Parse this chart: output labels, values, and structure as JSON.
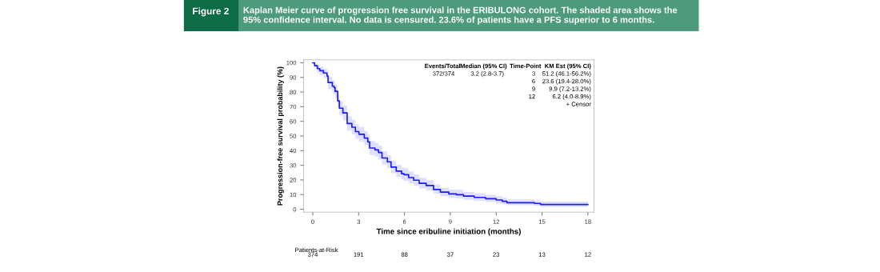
{
  "chart_data": {
    "type": "step",
    "title": "Figure 2",
    "subtitle": "Kaplan Meier curve of progression free survival in the ERIBULONG cohort. The shaded area shows the 95% confidence interval. No data is censured. 23.6% of patients have a PFS superior to 6 months.",
    "xlabel": "Time since eribuline initiation (months)",
    "ylabel": "Progression-free survival probability (%)",
    "x": [
      0,
      0.12,
      0.3,
      0.46,
      0.7,
      0.93,
      1.0,
      1.28,
      1.4,
      1.46,
      1.63,
      1.74,
      1.97,
      2.25,
      2.56,
      2.79,
      3.02,
      3.37,
      3.6,
      3.72,
      4.07,
      4.3,
      4.53,
      4.88,
      5.12,
      5.46,
      5.81,
      5.97,
      6.27,
      6.6,
      6.96,
      7.42,
      7.9,
      8.35,
      8.9,
      9.4,
      9.86,
      10.56,
      11.3,
      12.0,
      12.4,
      12.7,
      14.5,
      14.9,
      18
    ],
    "series": [
      {
        "color": "#1a1aff",
        "values": [
          100,
          98,
          96,
          94.6,
          93,
          91,
          86.5,
          84,
          83,
          80.5,
          74,
          69,
          65.8,
          58.5,
          56,
          53,
          51.2,
          48.6,
          46,
          41.8,
          40.5,
          38.7,
          35,
          32.4,
          28.8,
          26,
          24.3,
          23.6,
          21.6,
          19.8,
          17.7,
          16.2,
          13.5,
          11.7,
          10.5,
          9.9,
          9,
          8.1,
          7.2,
          6.3,
          5.4,
          4.5,
          4,
          3.2,
          3.2
        ],
        "lower": [
          100,
          96,
          93,
          91.5,
          89.5,
          87.5,
          82,
          79.5,
          78.5,
          76,
          69.5,
          64,
          60.8,
          53.5,
          51,
          48,
          46.1,
          43.6,
          41,
          37,
          35.8,
          34,
          30.5,
          28,
          24.6,
          22,
          20.2,
          19.4,
          17.6,
          16,
          14.2,
          12.8,
          10.5,
          8.9,
          7.8,
          7.2,
          6.5,
          5.7,
          5,
          4.0,
          3.4,
          2.7,
          2.3,
          1.6,
          1.6
        ],
        "upper": [
          100,
          99.5,
          98.3,
          97.2,
          96,
          94.5,
          90.5,
          88.3,
          87.4,
          85,
          78.5,
          73.8,
          70.8,
          63.5,
          61,
          58,
          56.2,
          53.6,
          51,
          46.6,
          45.2,
          43.4,
          39.6,
          37,
          33.2,
          30.2,
          28.6,
          28.0,
          25.8,
          23.8,
          21.5,
          19.8,
          16.8,
          14.8,
          13.4,
          13.2,
          11.8,
          10.8,
          9.8,
          8.9,
          7.8,
          6.7,
          6.0,
          5.2,
          5.2
        ]
      }
    ],
    "xlim": [
      -0.6,
      18.4
    ],
    "xticks": [
      0,
      3,
      6,
      9,
      12,
      15,
      18
    ],
    "ylim": [
      -2,
      102
    ],
    "yticks": [
      0,
      10,
      20,
      30,
      40,
      50,
      60,
      70,
      80,
      90,
      100
    ],
    "grid": false,
    "annotations": [
      "Events/Total",
      "Median (95% CI)",
      "Time-Point",
      "KM Est (95% CI)",
      "372/374",
      "3.2 (2.8-3.7)",
      "3",
      "51.2 (46.1-56.2%)",
      "6",
      "23.6 (19.4-28.0%)",
      "9",
      "9.9 (7.2-13.2%)",
      "12",
      "6.2 (4.0-8.9%)",
      "+ Censor",
      "Patients-at-Risk",
      "374",
      "191",
      "88",
      "37",
      "23",
      "13",
      "12"
    ]
  }
}
